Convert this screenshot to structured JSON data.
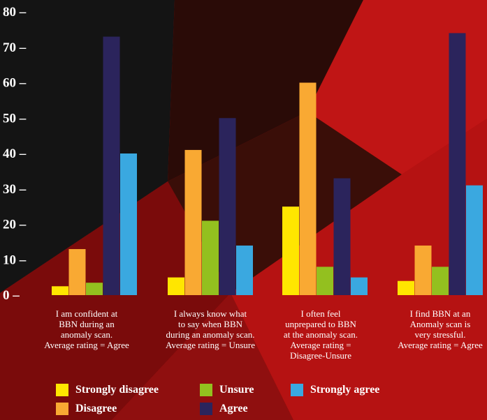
{
  "chart_data": {
    "type": "bar",
    "categories": [
      "I am confident at\nBBN during an\nanomaly scan.\nAverage rating = Agree",
      "I always know what\nto say when BBN\nduring an anomaly scan.\nAverage rating = Unsure",
      "I often feel\nunprepared to BBN\nat the anomaly scan.\nAverage rating =\nDisagree-Unsure",
      "I find BBN at an\nAnomaly scan is\nvery stressful.\nAverage rating = Agree"
    ],
    "series": [
      {
        "name": "Strongly disagree",
        "color": "#ffe600",
        "values": [
          2.5,
          5,
          25,
          4
        ]
      },
      {
        "name": "Disagree",
        "color": "#f9a933",
        "values": [
          13,
          41,
          60,
          14
        ]
      },
      {
        "name": "Unsure",
        "color": "#93c01f",
        "values": [
          3.5,
          21,
          8,
          8
        ]
      },
      {
        "name": "Agree",
        "color": "#2b245c",
        "values": [
          73,
          50,
          33,
          74
        ]
      },
      {
        "name": "Strongly agree",
        "color": "#3aa8e0",
        "values": [
          40,
          14,
          5,
          31
        ]
      }
    ],
    "yticks": [
      "0 –",
      "10 –",
      "20 –",
      "30 –",
      "40 –",
      "50 –",
      "60 –",
      "70 –",
      "80 –"
    ],
    "ylim": [
      0,
      80
    ],
    "legend_position": "bottom",
    "title": "",
    "xlabel": "",
    "ylabel": ""
  }
}
